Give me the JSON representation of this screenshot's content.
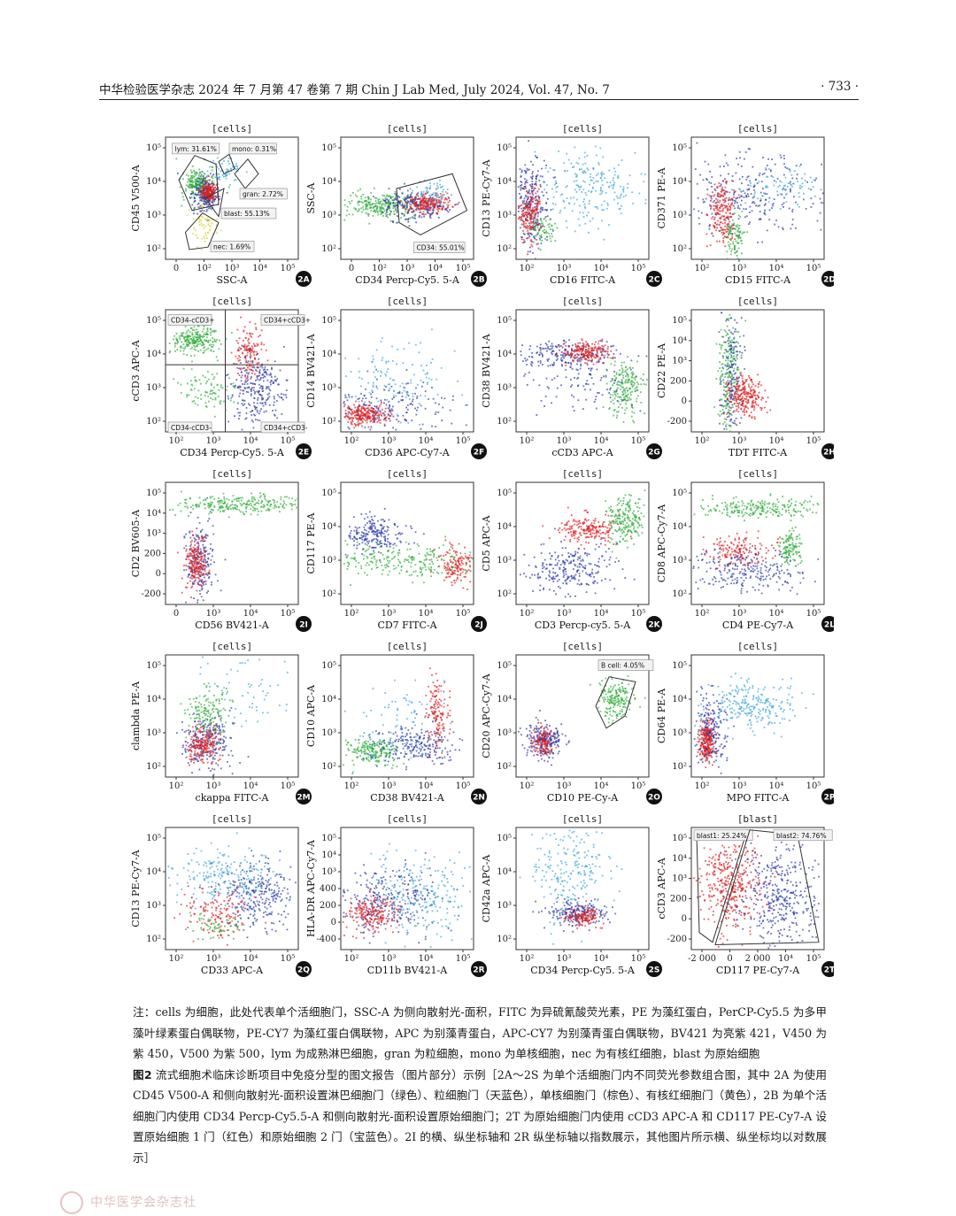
{
  "header": {
    "left": "中华检验医学杂志 2024 年 7 月第 47 卷第 7 期   Chin J Lab Med, July 2024, Vol. 47, No. 7",
    "page": "· 733 ·"
  },
  "figure": {
    "panels": [
      {
        "id": "2A",
        "title": "[cells]",
        "xlabel": "SSC-A",
        "ylabel": "CD45 V500-A",
        "xticks": [
          "0",
          "10²",
          "10³",
          "10⁴",
          "10⁵"
        ],
        "yticks": [
          "10⁵",
          "10⁴",
          "10³",
          "10²"
        ],
        "gates": [
          "lym: 31.61%",
          "mono: 0.31%",
          "gran: 2.72%",
          "blast: 55.13%",
          "nec: 1.69%"
        ]
      },
      {
        "id": "2B",
        "title": "[cells]",
        "xlabel": "CD34 Percp-Cy5. 5-A",
        "ylabel": "SSC-A",
        "xticks": [
          "0",
          "10²",
          "10³",
          "10⁴",
          "10⁵"
        ],
        "yticks": [
          "10⁵",
          "10⁴",
          "10³",
          "10²"
        ],
        "gates": [
          "CD34: 55.01%"
        ]
      },
      {
        "id": "2C",
        "title": "[cells]",
        "xlabel": "CD16 FITC-A",
        "ylabel": "CD13 PE-Cy7-A",
        "xticks": [
          "10²",
          "10³",
          "10⁴",
          "10⁵"
        ],
        "yticks": [
          "10⁵",
          "10⁴",
          "10³",
          "10²"
        ],
        "gates": []
      },
      {
        "id": "2D",
        "title": "[cells]",
        "xlabel": "CD15 FITC-A",
        "ylabel": "CD371 PE-A",
        "xticks": [
          "10²",
          "10³",
          "10⁴",
          "10⁵"
        ],
        "yticks": [
          "10⁵",
          "10⁴",
          "10³",
          "10²"
        ],
        "gates": []
      },
      {
        "id": "2E",
        "title": "[cells]",
        "xlabel": "CD34 Percp-Cy5. 5-A",
        "ylabel": "cCD3 APC-A",
        "xticks": [
          "10²",
          "10³",
          "10⁴",
          "10⁵"
        ],
        "yticks": [
          "10⁵",
          "10⁴",
          "10³",
          "10²"
        ],
        "gates": [
          "CD34-cCD3+",
          "CD34+cCD3+",
          "CD34-cCD3-",
          "CD34+cCD3-"
        ]
      },
      {
        "id": "2F",
        "title": "[cells]",
        "xlabel": "CD36 APC-Cy7-A",
        "ylabel": "CD14 BV421-A",
        "xticks": [
          "10²",
          "10³",
          "10⁴",
          "10⁵"
        ],
        "yticks": [
          "10⁵",
          "10⁴",
          "10³",
          "10²"
        ],
        "gates": []
      },
      {
        "id": "2G",
        "title": "[cells]",
        "xlabel": "cCD3 APC-A",
        "ylabel": "CD38 BV421-A",
        "xticks": [
          "10²",
          "10³",
          "10⁴",
          "10⁵"
        ],
        "yticks": [
          "10⁵",
          "10⁴",
          "10³",
          "10²"
        ],
        "gates": []
      },
      {
        "id": "2H",
        "title": "[cells]",
        "xlabel": "TDT FITC-A",
        "ylabel": "CD22 PE-A",
        "xticks": [
          "10²",
          "10³",
          "10⁴",
          "10⁵"
        ],
        "yticks": [
          "10⁵",
          "10⁴",
          "10³",
          "200",
          "0",
          "-200"
        ],
        "gates": []
      },
      {
        "id": "2I",
        "title": "[cells]",
        "xlabel": "CD56 BV421-A",
        "ylabel": "CD2 BV605-A",
        "xticks": [
          "0",
          "10³",
          "10⁴",
          "10⁵"
        ],
        "yticks": [
          "10⁵",
          "10⁴",
          "10³",
          "200",
          "0",
          "-200"
        ],
        "gates": []
      },
      {
        "id": "2J",
        "title": "[cells]",
        "xlabel": "CD7 FITC-A",
        "ylabel": "CD117 PE-A",
        "xticks": [
          "10²",
          "10³",
          "10⁴",
          "10⁵"
        ],
        "yticks": [
          "10⁵",
          "10⁴",
          "10³",
          "10²"
        ],
        "gates": []
      },
      {
        "id": "2K",
        "title": "[cells]",
        "xlabel": "CD3 Percp-cy5. 5-A",
        "ylabel": "CD5 APC-A",
        "xticks": [
          "10²",
          "10³",
          "10⁴",
          "10⁵"
        ],
        "yticks": [
          "10⁵",
          "10⁴",
          "10³",
          "10²"
        ],
        "gates": []
      },
      {
        "id": "2L",
        "title": "[cells]",
        "xlabel": "CD4 PE-Cy7-A",
        "ylabel": "CD8 APC-Cy7-A",
        "xticks": [
          "10²",
          "10³",
          "10⁴",
          "10⁵"
        ],
        "yticks": [
          "10⁵",
          "10⁴",
          "10³",
          "10²"
        ],
        "gates": []
      },
      {
        "id": "2M",
        "title": "[cells]",
        "xlabel": "ckappa FITC-A",
        "ylabel": "clambda PE-A",
        "xticks": [
          "10²",
          "10³",
          "10⁴",
          "10⁵"
        ],
        "yticks": [
          "10⁵",
          "10⁴",
          "10³",
          "10²"
        ],
        "gates": []
      },
      {
        "id": "2N",
        "title": "[cells]",
        "xlabel": "CD38 BV421-A",
        "ylabel": "CD10 APC-A",
        "xticks": [
          "10²",
          "10³",
          "10⁴",
          "10⁵"
        ],
        "yticks": [
          "10⁵",
          "10⁴",
          "10³",
          "10²"
        ],
        "gates": []
      },
      {
        "id": "2O",
        "title": "[cells]",
        "xlabel": "CD10 PE-Cy-A",
        "ylabel": "CD20 APC-Cy7-A",
        "xticks": [
          "10²",
          "10³",
          "10⁴",
          "10⁵"
        ],
        "yticks": [
          "10⁵",
          "10⁴",
          "10³",
          "10²"
        ],
        "gates": [
          "B cell: 4.05%"
        ]
      },
      {
        "id": "2P",
        "title": "[cells]",
        "xlabel": "MPO FITC-A",
        "ylabel": "CD64 PE-A",
        "xticks": [
          "10²",
          "10³",
          "10⁴",
          "10⁵"
        ],
        "yticks": [
          "10⁵",
          "10⁴",
          "10³",
          "10²"
        ],
        "gates": []
      },
      {
        "id": "2Q",
        "title": "[cells]",
        "xlabel": "CD33 APC-A",
        "ylabel": "CD13 PE-Cy7-A",
        "xticks": [
          "10²",
          "10³",
          "10⁴",
          "10⁵"
        ],
        "yticks": [
          "10⁵",
          "10⁴",
          "10³",
          "10²"
        ],
        "gates": []
      },
      {
        "id": "2R",
        "title": "[cells]",
        "xlabel": "CD11b BV421-A",
        "ylabel": "HLA-DR APC-Cy7-A",
        "xticks": [
          "10²",
          "10³",
          "10⁴",
          "10⁵"
        ],
        "yticks": [
          "10⁵",
          "10⁴",
          "10³",
          "400",
          "200",
          "0",
          "-400"
        ],
        "gates": []
      },
      {
        "id": "2S",
        "title": "[cells]",
        "xlabel": "CD34 Percp-Cy5. 5-A",
        "ylabel": "CD42a APC-A",
        "xticks": [
          "10²",
          "10³",
          "10⁴",
          "10⁵"
        ],
        "yticks": [
          "10⁵",
          "10⁴",
          "10³",
          "10²"
        ],
        "gates": []
      },
      {
        "id": "2T",
        "title": "[blast]",
        "xlabel": "CD117 PE-Cy7-A",
        "ylabel": "cCD3 APC-A",
        "xticks": [
          "-2 000",
          "0",
          "2 000",
          "10⁴",
          "10⁵"
        ],
        "yticks": [
          "10⁵",
          "10⁴",
          "10³",
          "200",
          "0",
          "-200"
        ],
        "gates": [
          "blast1: 25.24%",
          "blast2: 74.76%"
        ]
      }
    ],
    "colors": {
      "green": "#2fae3a",
      "blue": "#2b3aa8",
      "red": "#e02020",
      "skyblue": "#3aa6dc",
      "brown": "#8a4a2a",
      "yellow": "#d8d030"
    }
  },
  "notes": {
    "note": "注：cells 为细胞，此处代表单个活细胞门，SSC-A 为侧向散射光-面积，FITC 为异硫氰酸荧光素，PE 为藻红蛋白，PerCP-Cy5.5 为多甲藻叶绿素蛋白偶联物，PE-CY7 为藻红蛋白偶联物，APC 为别藻青蛋白，APC-CY7 为别藻青蛋白偶联物，BV421 为亮紫 421，V450 为紫 450，V500 为紫 500，lym 为成熟淋巴细胞，gran 为粒细胞，mono 为单核细胞，nec 为有核红细胞，blast 为原始细胞",
    "caption_label": "图2",
    "caption": "  流式细胞术临床诊断项目中免疫分型的图文报告（图片部分）示例［2A～2S 为单个活细胞门内不同荧光参数组合图，其中 2A 为使用 CD45 V500-A 和侧向散射光-面积设置淋巴细胞门（绿色）、粒细胞门（天蓝色），单核细胞门（棕色）、有核红细胞门（黄色），2B 为单个活细胞门内使用 CD34 Percp-Cy5.5-A 和侧向散射光-面积设置原始细胞门；2T 为原始细胞门内使用 cCD3 APC-A 和 CD117 PE-Cy7-A 设置原始细胞 1 门（红色）和原始细胞 2 门（宝蓝色）。2I 的横、纵坐标轴和 2R 纵坐标轴以指数展示，其他图片所示横、纵坐标均以对数展示］"
  },
  "footer": {
    "publisher": "中华医学会杂志社"
  }
}
